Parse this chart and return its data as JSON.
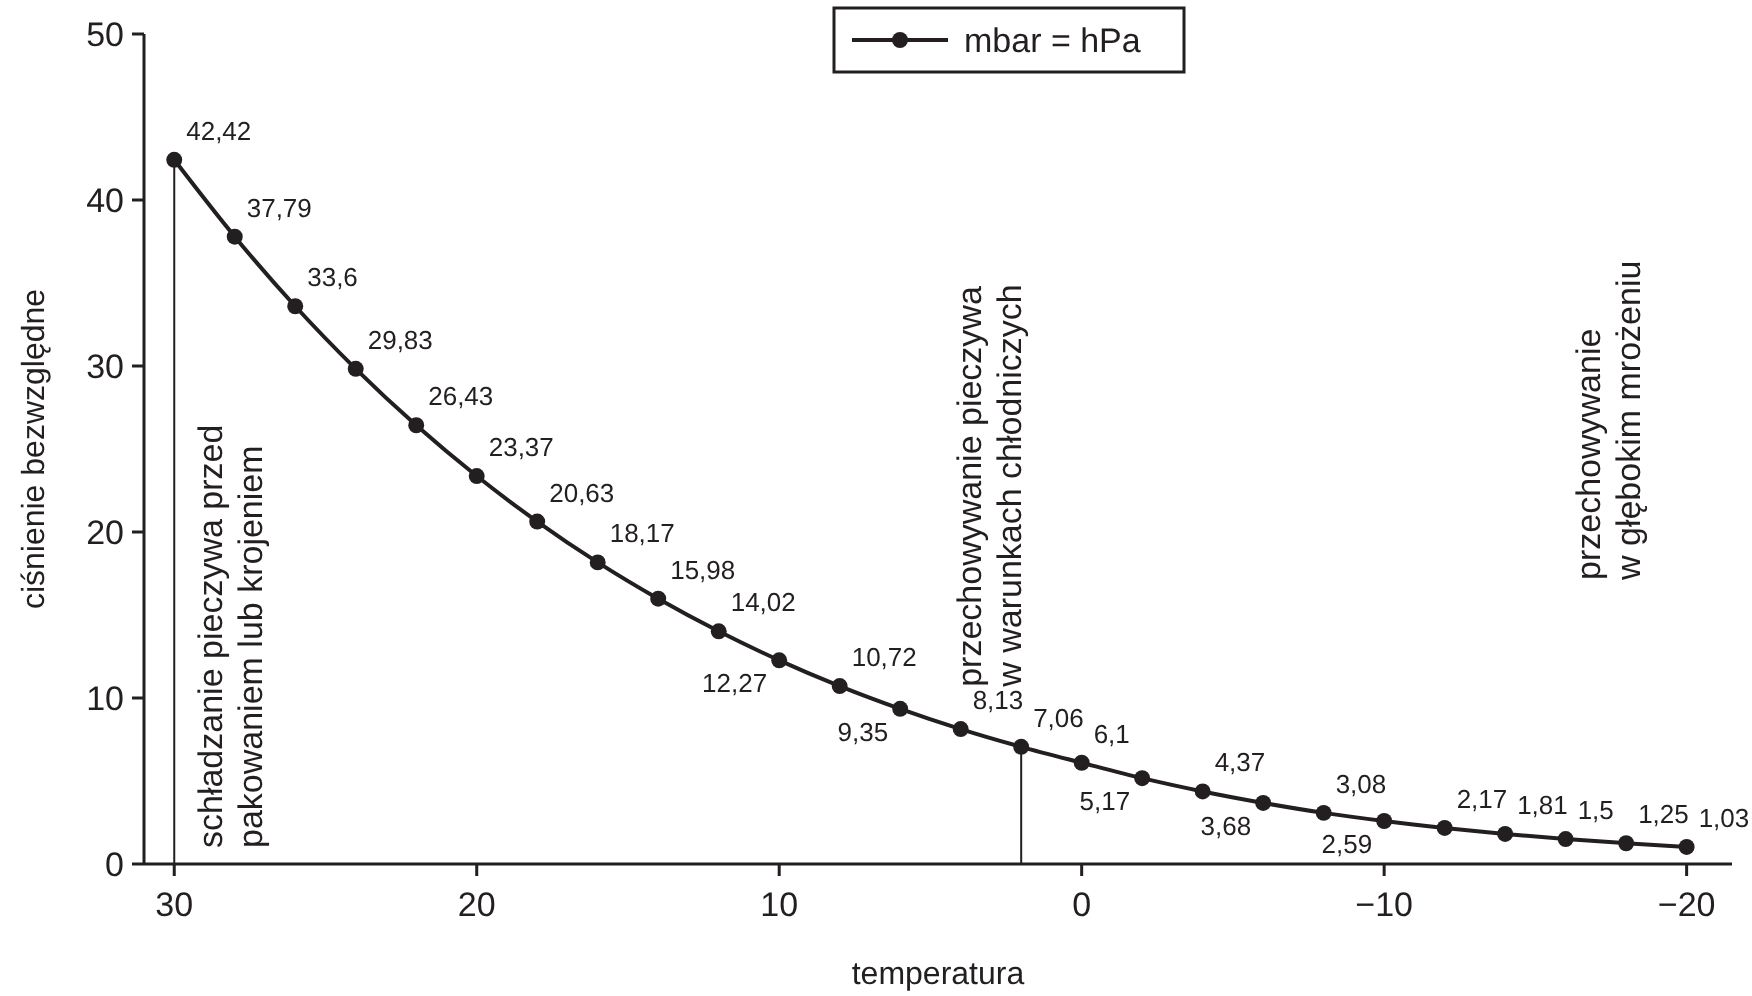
{
  "chart_data": {
    "type": "line",
    "xlabel": "temperatura",
    "ylabel": "ciśnienie bezwzględne",
    "x": [
      30,
      28,
      26,
      24,
      22,
      20,
      18,
      16,
      14,
      12,
      10,
      8,
      6,
      4,
      2,
      0,
      -2,
      -4,
      -6,
      -8,
      -10,
      -12,
      -14,
      -16,
      -18,
      -20
    ],
    "series": [
      {
        "name": "mbar = hPa",
        "color": "#231f20",
        "values": [
          42.42,
          37.79,
          33.6,
          29.83,
          26.43,
          23.37,
          20.63,
          18.17,
          15.98,
          14.02,
          12.27,
          10.72,
          9.35,
          8.13,
          7.06,
          6.1,
          5.17,
          4.37,
          3.68,
          3.08,
          2.59,
          2.17,
          1.81,
          1.5,
          1.25,
          1.03
        ],
        "value_labels": [
          "42,42",
          "37,79",
          "33,6",
          "29,83",
          "26,43",
          "23,37",
          "20,63",
          "18,17",
          "15,98",
          "14,02",
          "12,27",
          "10,72",
          "9,35",
          "8,13",
          "7,06",
          "6,1",
          "5,17",
          "4,37",
          "3,68",
          "3,08",
          "2,59",
          "2,17",
          "1,81",
          "1,5",
          "1,25",
          "1,03"
        ]
      }
    ],
    "xlim": [
      31,
      -21.5
    ],
    "xticks": [
      30,
      20,
      10,
      0,
      {
        "value": -10,
        "label": "−10"
      },
      {
        "value": -20,
        "label": "−20"
      }
    ],
    "ylim": [
      0,
      50
    ],
    "yticks": [
      0,
      10,
      20,
      30,
      40,
      50
    ],
    "grid": false,
    "legend": "top",
    "marker": "circle",
    "line_style": "solid",
    "ref_lines": [
      {
        "axis": "x",
        "value": 30,
        "label": "schładzanie pieczywa przed pakowaniem lub krojeniem"
      },
      {
        "axis": "x",
        "value": 2,
        "label": "przechowywanie pieczywa w warunkach chłodniczych"
      }
    ],
    "annotations": [
      "przechowywanie w głębokim mrożeniu"
    ]
  }
}
